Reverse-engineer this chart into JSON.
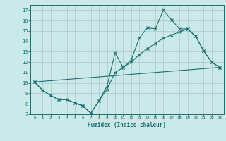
{
  "xlabel": "Humidex (Indice chaleur)",
  "bg_color": "#cce9e9",
  "grid_color": "#b0cccc",
  "line_color": "#1a7070",
  "xlim": [
    -0.5,
    23.5
  ],
  "ylim": [
    7,
    17.5
  ],
  "yticks": [
    7,
    8,
    9,
    10,
    11,
    12,
    13,
    14,
    15,
    16,
    17
  ],
  "xticks": [
    0,
    1,
    2,
    3,
    4,
    5,
    6,
    7,
    8,
    9,
    10,
    11,
    12,
    13,
    14,
    15,
    16,
    17,
    18,
    19,
    20,
    21,
    22,
    23
  ],
  "series1_x": [
    0,
    1,
    2,
    3,
    4,
    5,
    6,
    7,
    8,
    9,
    10,
    11,
    12,
    13,
    14,
    15,
    16,
    17,
    18,
    19,
    20,
    21,
    22,
    23
  ],
  "series1_y": [
    10.1,
    9.3,
    8.8,
    8.4,
    8.4,
    8.1,
    7.8,
    7.1,
    8.3,
    9.7,
    12.9,
    11.5,
    12.2,
    14.3,
    15.3,
    15.2,
    17.0,
    16.1,
    15.2,
    15.2,
    14.5,
    13.1,
    12.0,
    11.5
  ],
  "series2_x": [
    0,
    1,
    2,
    3,
    4,
    5,
    6,
    7,
    8,
    9,
    10,
    11,
    12,
    13,
    14,
    15,
    16,
    17,
    18,
    19,
    20,
    21,
    22,
    23
  ],
  "series2_y": [
    10.1,
    9.3,
    8.8,
    8.4,
    8.4,
    8.1,
    7.8,
    7.1,
    8.3,
    9.4,
    11.0,
    11.5,
    12.0,
    12.7,
    13.3,
    13.8,
    14.3,
    14.6,
    14.9,
    15.2,
    14.5,
    13.1,
    12.0,
    11.5
  ],
  "series3_x": [
    0,
    23
  ],
  "series3_y": [
    10.1,
    11.5
  ]
}
